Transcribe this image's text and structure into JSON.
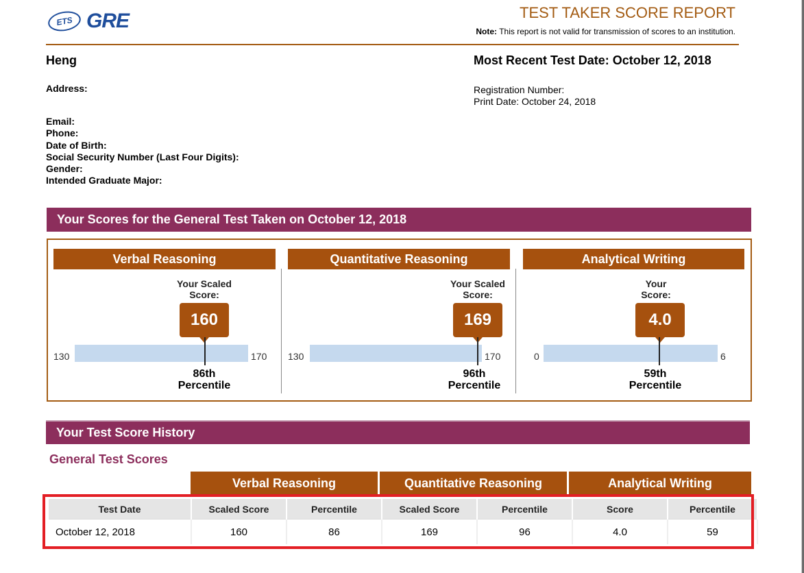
{
  "header": {
    "ets_logo": "ETS",
    "gre_logo": "GRE",
    "title": "TEST TAKER SCORE REPORT",
    "note_label": "Note:",
    "note_text": "This report is not valid for transmission of scores to an institution."
  },
  "candidate": {
    "name": "Heng",
    "address_label": "Address:",
    "fields": [
      "Email:",
      "Phone:",
      "Date of Birth:",
      "Social Security Number (Last Four Digits):",
      "Gender:",
      "Intended Graduate Major:"
    ],
    "recent_test_date": "Most Recent Test Date: October 12, 2018",
    "registration_label": "Registration Number:",
    "print_date": "Print Date: October 24, 2018"
  },
  "scores_section": {
    "title": "Your Scores for the General Test Taken on October 12, 2018",
    "panels": [
      {
        "name": "Verbal Reasoning",
        "label_line1": "Your Scaled",
        "label_line2": "Score:",
        "score": "160",
        "min": "130",
        "max": "170",
        "score_value": 160,
        "min_value": 130,
        "max_value": 170,
        "percentile": "86th",
        "percentile_word": "Percentile"
      },
      {
        "name": "Quantitative Reasoning",
        "label_line1": "Your Scaled",
        "label_line2": "Score:",
        "score": "169",
        "min": "130",
        "max": "170",
        "score_value": 169,
        "min_value": 130,
        "max_value": 170,
        "percentile": "96th",
        "percentile_word": "Percentile"
      },
      {
        "name": "Analytical Writing",
        "label_line1": "Your",
        "label_line2": "Score:",
        "score": "4.0",
        "min": "0",
        "max": "6",
        "score_value": 4.0,
        "min_value": 0,
        "max_value": 6,
        "percentile": "59th",
        "percentile_word": "Percentile"
      }
    ]
  },
  "history": {
    "title": "Your Test Score History",
    "subtitle": "General Test Scores",
    "groups": [
      "Verbal Reasoning",
      "Quantitative Reasoning",
      "Analytical Writing"
    ],
    "columns": [
      "Test Date",
      "Scaled Score",
      "Percentile",
      "Scaled Score",
      "Percentile",
      "Score",
      "Percentile"
    ],
    "rows": [
      [
        "October 12, 2018",
        "160",
        "86",
        "169",
        "96",
        "4.0",
        "59"
      ]
    ]
  },
  "colors": {
    "brand_blue": "#1f4e9c",
    "section_purple": "#8c2e5c",
    "panel_brown": "#a6510e",
    "bar_blue": "#c5d9ee",
    "highlight_red": "#e31e24"
  }
}
